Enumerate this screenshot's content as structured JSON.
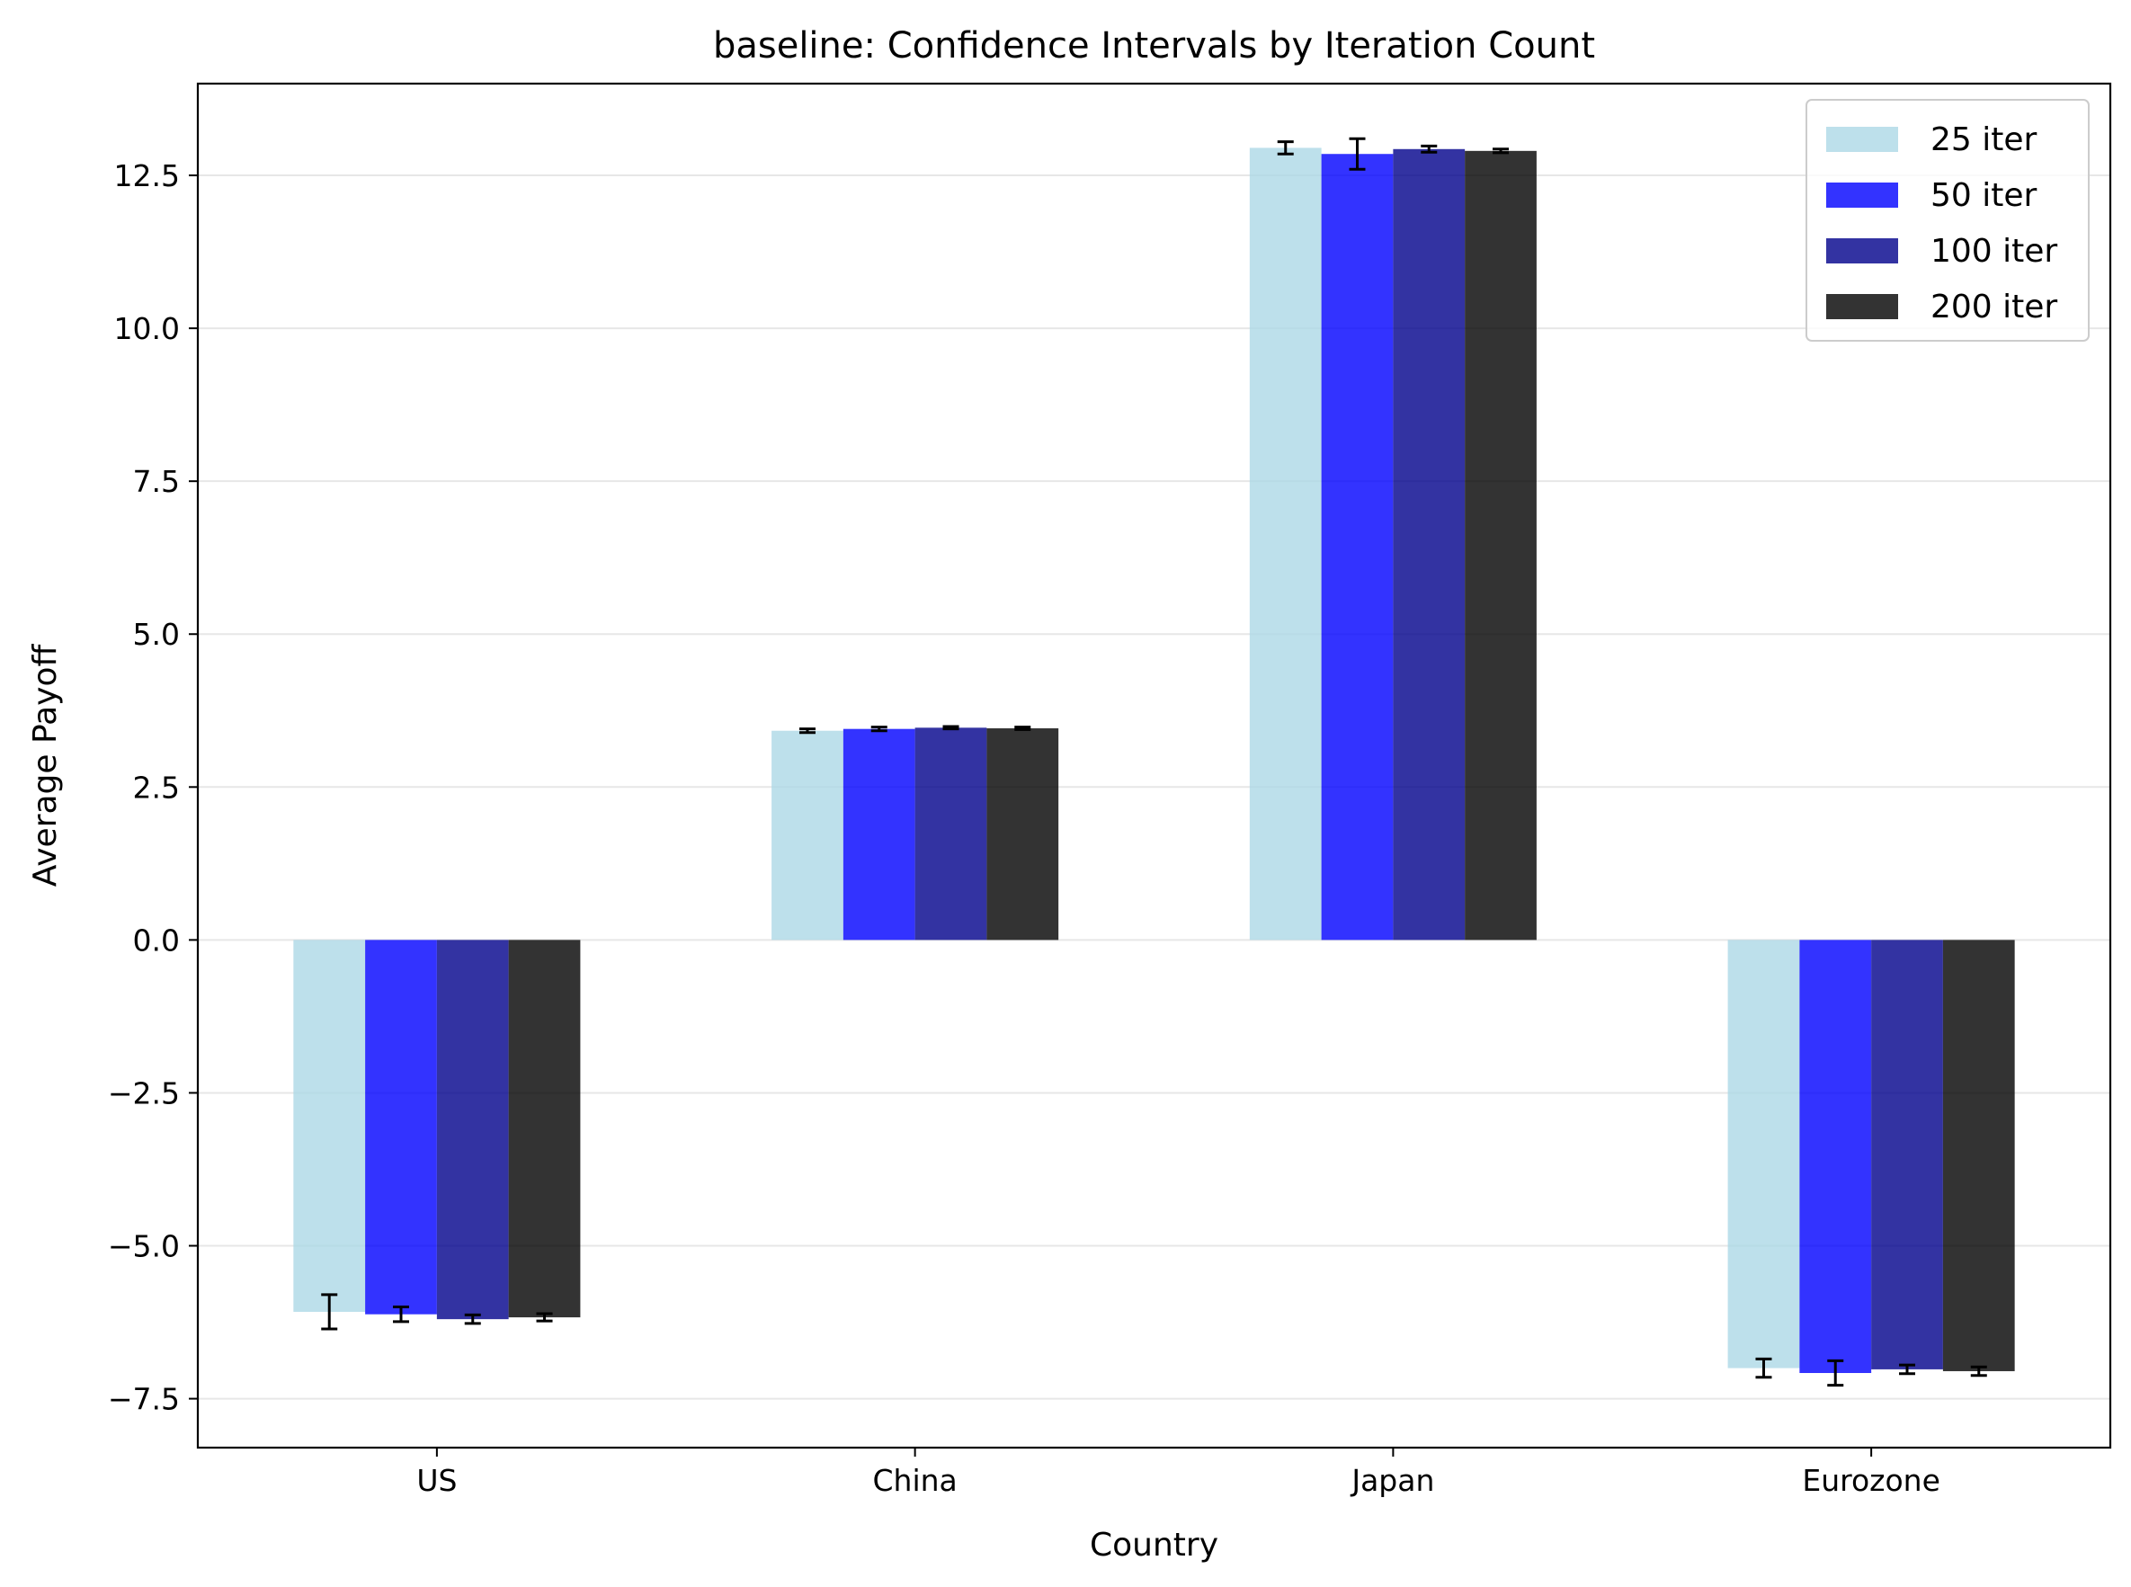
{
  "chart_data": {
    "type": "bar",
    "title": "baseline: Confidence Intervals by Iteration Count",
    "xlabel": "Country",
    "ylabel": "Average Payoff",
    "categories": [
      "US",
      "China",
      "Japan",
      "Eurozone"
    ],
    "ylim": [
      -8.3,
      14.0
    ],
    "yticks": [
      -7.5,
      -5.0,
      -2.5,
      0.0,
      2.5,
      5.0,
      7.5,
      10.0,
      12.5
    ],
    "ytick_labels": [
      "−7.5",
      "−5.0",
      "−2.5",
      "0.0",
      "2.5",
      "5.0",
      "7.5",
      "10.0",
      "12.5"
    ],
    "grid": "y",
    "legend_position": "top-right",
    "series": [
      {
        "name": "25 iter",
        "color": "#add8e6",
        "values": [
          -6.08,
          3.42,
          12.95,
          -7.0
        ],
        "errors": [
          0.28,
          0.03,
          0.1,
          0.15
        ]
      },
      {
        "name": "50 iter",
        "color": "#0000ff",
        "values": [
          -6.12,
          3.45,
          12.85,
          -7.08
        ],
        "errors": [
          0.12,
          0.03,
          0.25,
          0.2
        ]
      },
      {
        "name": "100 iter",
        "color": "#00008b",
        "values": [
          -6.2,
          3.47,
          12.93,
          -7.02
        ],
        "errors": [
          0.07,
          0.02,
          0.05,
          0.07
        ]
      },
      {
        "name": "200 iter",
        "color": "#000000",
        "values": [
          -6.17,
          3.46,
          12.9,
          -7.05
        ],
        "errors": [
          0.06,
          0.02,
          0.03,
          0.07
        ]
      }
    ]
  }
}
